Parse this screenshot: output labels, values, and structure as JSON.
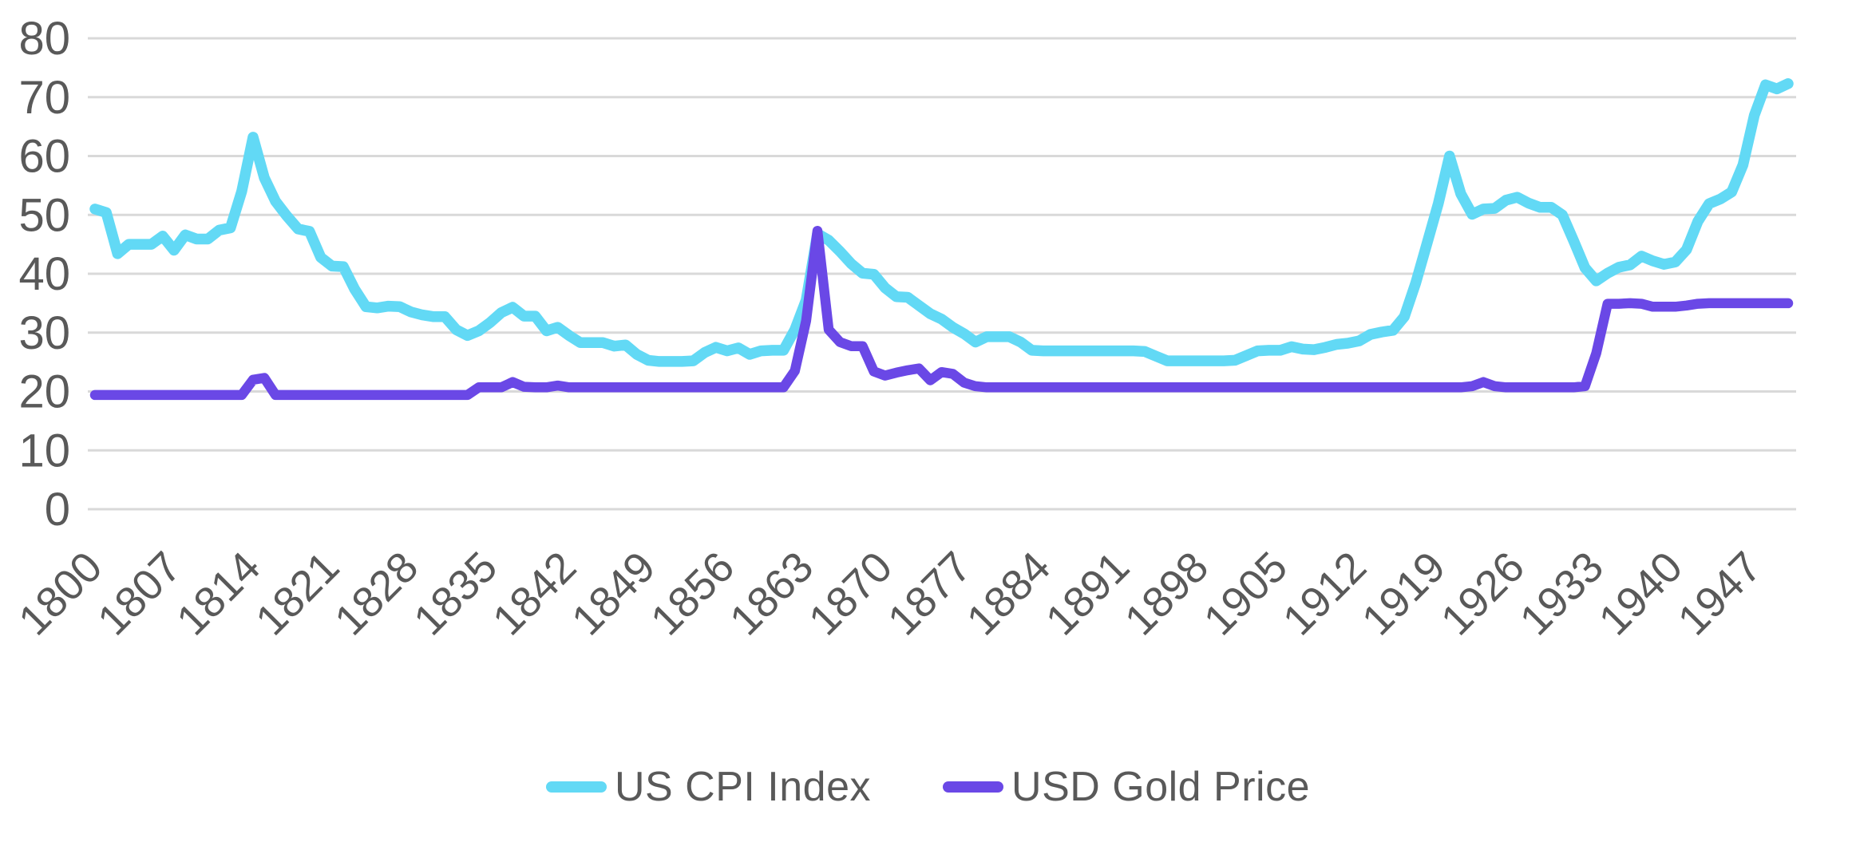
{
  "chart_data": {
    "type": "line",
    "title": "",
    "xlabel": "",
    "ylabel": "",
    "x_years": {
      "start": 1800,
      "end": 1950,
      "step": 1
    },
    "x_ticks": [
      1800,
      1807,
      1814,
      1821,
      1828,
      1835,
      1842,
      1849,
      1856,
      1863,
      1870,
      1877,
      1884,
      1891,
      1898,
      1905,
      1912,
      1919,
      1926,
      1933,
      1940,
      1947
    ],
    "y_ticks": [
      0,
      10,
      20,
      30,
      40,
      50,
      60,
      70,
      80
    ],
    "ylim": [
      0,
      80
    ],
    "grid": "horizontal",
    "legend_position": "bottom-center",
    "background_color": "#FFFFFF",
    "gridline_color": "#D9D9D9",
    "axis_text_color": "#595959",
    "series": [
      {
        "name": "US CPI Index",
        "color": "#62D9F5",
        "values": [
          51.0,
          50.4,
          43.4,
          45.0,
          45.0,
          45.0,
          46.4,
          44.0,
          46.6,
          45.9,
          45.9,
          47.4,
          47.8,
          54.0,
          63.2,
          56.3,
          52.3,
          49.8,
          47.6,
          47.2,
          42.8,
          41.3,
          41.2,
          37.4,
          34.4,
          34.2,
          34.5,
          34.4,
          33.5,
          33.0,
          32.7,
          32.7,
          30.5,
          29.5,
          30.3,
          31.7,
          33.4,
          34.3,
          32.8,
          32.8,
          30.3,
          30.9,
          29.5,
          28.3,
          28.3,
          28.3,
          27.7,
          27.9,
          26.3,
          25.3,
          25.1,
          25.1,
          25.1,
          25.2,
          26.6,
          27.5,
          26.9,
          27.4,
          26.3,
          26.9,
          27.0,
          27.0,
          30.5,
          35.5,
          46.8,
          45.7,
          43.8,
          41.7,
          40.1,
          39.9,
          37.6,
          36.1,
          36.0,
          34.6,
          33.2,
          32.3,
          30.9,
          29.8,
          28.4,
          29.3,
          29.3,
          29.3,
          28.4,
          27.0,
          26.9,
          26.9,
          26.9,
          26.9,
          26.9,
          26.9,
          26.9,
          26.9,
          26.9,
          26.8,
          26.0,
          25.2,
          25.2,
          25.2,
          25.2,
          25.2,
          25.2,
          25.3,
          26.1,
          26.9,
          27.0,
          27.0,
          27.6,
          27.2,
          27.1,
          27.5,
          28.0,
          28.2,
          28.6,
          29.7,
          30.1,
          30.4,
          32.7,
          38.4,
          45.1,
          51.9,
          60.0,
          53.6,
          50.1,
          51.0,
          51.1,
          52.5,
          53.0,
          52.0,
          51.3,
          51.3,
          50.0,
          45.6,
          41.0,
          38.8,
          40.1,
          41.1,
          41.5,
          43.0,
          42.2,
          41.6,
          42.0,
          44.1,
          48.9,
          51.9,
          52.7,
          53.9,
          58.5,
          66.9,
          72.1,
          71.4,
          72.3
        ]
      },
      {
        "name": "USD Gold Price",
        "color": "#6A48E6",
        "values": [
          19.4,
          19.4,
          19.4,
          19.4,
          19.4,
          19.4,
          19.4,
          19.4,
          19.4,
          19.4,
          19.4,
          19.4,
          19.4,
          19.4,
          22.0,
          22.3,
          19.4,
          19.4,
          19.4,
          19.4,
          19.4,
          19.4,
          19.4,
          19.4,
          19.4,
          19.4,
          19.4,
          19.4,
          19.4,
          19.4,
          19.4,
          19.4,
          19.4,
          19.4,
          20.7,
          20.7,
          20.7,
          21.6,
          20.8,
          20.7,
          20.7,
          21.0,
          20.7,
          20.7,
          20.7,
          20.7,
          20.7,
          20.7,
          20.7,
          20.7,
          20.7,
          20.7,
          20.7,
          20.7,
          20.7,
          20.7,
          20.7,
          20.7,
          20.7,
          20.7,
          20.7,
          20.7,
          23.5,
          32.0,
          47.3,
          30.5,
          28.4,
          27.7,
          27.7,
          23.4,
          22.7,
          23.2,
          23.6,
          23.9,
          21.9,
          23.3,
          23.0,
          21.5,
          20.9,
          20.7,
          20.7,
          20.7,
          20.7,
          20.7,
          20.7,
          20.7,
          20.7,
          20.7,
          20.7,
          20.7,
          20.7,
          20.7,
          20.7,
          20.7,
          20.7,
          20.7,
          20.7,
          20.7,
          20.7,
          20.7,
          20.7,
          20.7,
          20.7,
          20.7,
          20.7,
          20.7,
          20.7,
          20.7,
          20.7,
          20.7,
          20.7,
          20.7,
          20.7,
          20.7,
          20.7,
          20.7,
          20.7,
          20.7,
          20.7,
          20.7,
          20.7,
          20.7,
          20.9,
          21.6,
          20.9,
          20.7,
          20.7,
          20.7,
          20.7,
          20.7,
          20.7,
          20.7,
          20.9,
          26.5,
          34.9,
          34.9,
          35.0,
          34.9,
          34.4,
          34.4,
          34.4,
          34.6,
          34.9,
          35.0,
          35.0,
          35.0,
          35.0,
          35.0,
          35.0,
          35.0,
          35.0
        ]
      }
    ]
  }
}
